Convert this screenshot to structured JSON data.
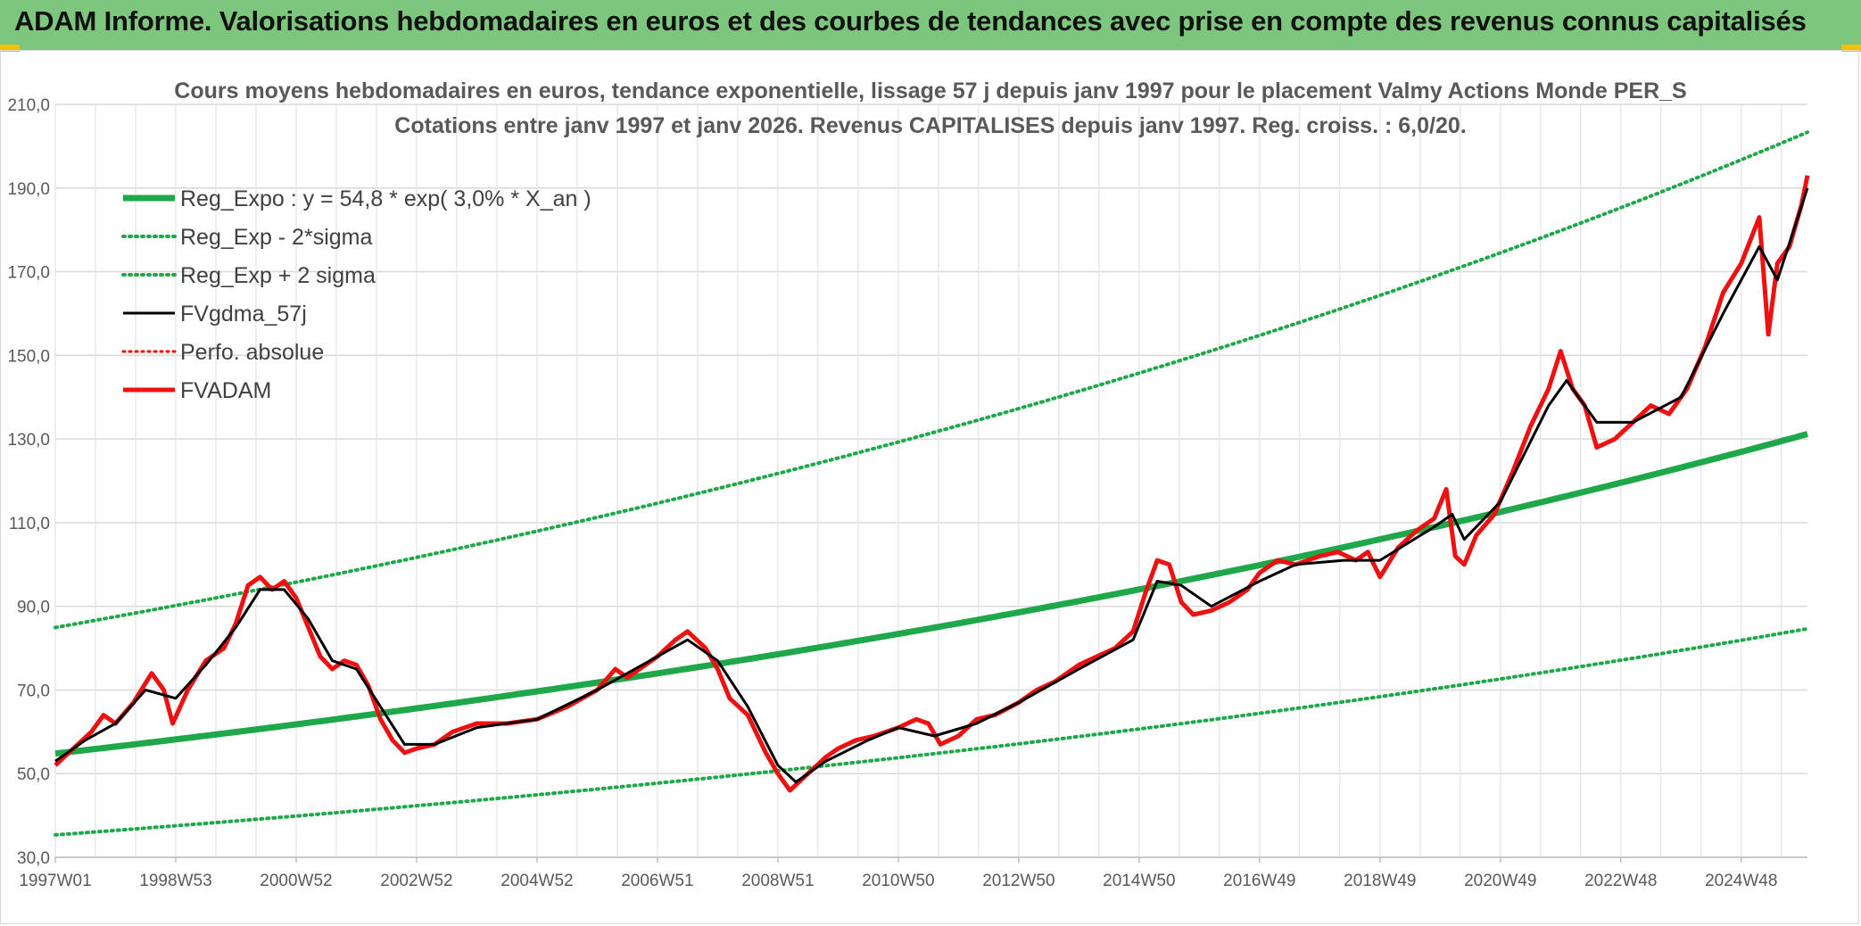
{
  "banner": {
    "text": "ADAM Informe. Valorisations hebdomadaires en euros et des courbes de tendances avec prise en compte des revenus connus capitalisés",
    "background": "#7dc67d"
  },
  "chart_data": {
    "type": "line",
    "title": [
      "Cours moyens hebdomadaires en euros, tendance exponentielle, lissage 57 j depuis janv 1997 pour le placement Valmy Actions Monde PER_S",
      "Cotations entre janv 1997 et janv 2026. Revenus CAPITALISES depuis janv 1997. Reg. croiss. : 6,0/20."
    ],
    "ylim": [
      30,
      210
    ],
    "yticks": [
      "30,0",
      "50,0",
      "70,0",
      "90,0",
      "110,0",
      "130,0",
      "150,0",
      "170,0",
      "190,0",
      "210,0"
    ],
    "xlim": [
      1997.0,
      2026.1
    ],
    "xticks": [
      {
        "label": "1997W01",
        "x": 1997.0
      },
      {
        "label": "1998W53",
        "x": 1999.0
      },
      {
        "label": "2000W52",
        "x": 2001.0
      },
      {
        "label": "2002W52",
        "x": 2003.0
      },
      {
        "label": "2004W52",
        "x": 2005.0
      },
      {
        "label": "2006W51",
        "x": 2007.0
      },
      {
        "label": "2008W51",
        "x": 2009.0
      },
      {
        "label": "2010W50",
        "x": 2011.0
      },
      {
        "label": "2012W50",
        "x": 2013.0
      },
      {
        "label": "2014W50",
        "x": 2015.0
      },
      {
        "label": "2016W49",
        "x": 2017.0
      },
      {
        "label": "2018W49",
        "x": 2019.0
      },
      {
        "label": "2020W49",
        "x": 2021.0
      },
      {
        "label": "2022W48",
        "x": 2023.0
      },
      {
        "label": "2024W48",
        "x": 2025.0
      }
    ],
    "regression": {
      "a": 54.8,
      "rate": 0.03,
      "sigma_factor": 1.55
    },
    "series": [
      {
        "name": "Reg_Expo : y = 54,8 * exp( 3,0% *  X_an )",
        "color": "#1fa84a",
        "style": "solid",
        "width": 7
      },
      {
        "name": "Reg_Exp - 2*sigma",
        "color": "#1fa84a",
        "style": "dotted",
        "width": 4
      },
      {
        "name": "Reg_Exp + 2 sigma",
        "color": "#1fa84a",
        "style": "dotted",
        "width": 4
      },
      {
        "name": "FVgdma_57j",
        "color": "#000000",
        "style": "solid",
        "width": 3
      },
      {
        "name": "Perfo. absolue",
        "color": "#ff0000",
        "style": "dotted",
        "width": 3
      },
      {
        "name": "FVADAM",
        "color": "#ee1111",
        "style": "solid",
        "width": 5
      }
    ],
    "fvadam_points": [
      [
        1997.0,
        52
      ],
      [
        1997.3,
        56
      ],
      [
        1997.6,
        60
      ],
      [
        1997.8,
        64
      ],
      [
        1998.0,
        62
      ],
      [
        1998.3,
        67
      ],
      [
        1998.6,
        74
      ],
      [
        1998.8,
        70
      ],
      [
        1998.95,
        62
      ],
      [
        1999.2,
        70
      ],
      [
        1999.5,
        77
      ],
      [
        1999.8,
        80
      ],
      [
        2000.0,
        86
      ],
      [
        2000.2,
        95
      ],
      [
        2000.4,
        97
      ],
      [
        2000.6,
        94
      ],
      [
        2000.8,
        96
      ],
      [
        2001.0,
        92
      ],
      [
        2001.2,
        85
      ],
      [
        2001.4,
        78
      ],
      [
        2001.6,
        75
      ],
      [
        2001.8,
        77
      ],
      [
        2002.0,
        76
      ],
      [
        2002.2,
        71
      ],
      [
        2002.4,
        63
      ],
      [
        2002.6,
        58
      ],
      [
        2002.8,
        55
      ],
      [
        2003.0,
        56
      ],
      [
        2003.3,
        57
      ],
      [
        2003.6,
        60
      ],
      [
        2004.0,
        62
      ],
      [
        2004.5,
        62
      ],
      [
        2005.0,
        63
      ],
      [
        2005.5,
        66
      ],
      [
        2006.0,
        70
      ],
      [
        2006.3,
        75
      ],
      [
        2006.5,
        73
      ],
      [
        2007.0,
        78
      ],
      [
        2007.3,
        82
      ],
      [
        2007.5,
        84
      ],
      [
        2007.8,
        80
      ],
      [
        2008.0,
        75
      ],
      [
        2008.2,
        68
      ],
      [
        2008.5,
        64
      ],
      [
        2008.8,
        55
      ],
      [
        2009.0,
        50
      ],
      [
        2009.2,
        46
      ],
      [
        2009.5,
        50
      ],
      [
        2009.8,
        54
      ],
      [
        2010.0,
        56
      ],
      [
        2010.3,
        58
      ],
      [
        2010.6,
        59
      ],
      [
        2011.0,
        61
      ],
      [
        2011.3,
        63
      ],
      [
        2011.5,
        62
      ],
      [
        2011.7,
        57
      ],
      [
        2012.0,
        59
      ],
      [
        2012.3,
        63
      ],
      [
        2012.6,
        64
      ],
      [
        2013.0,
        67
      ],
      [
        2013.3,
        70
      ],
      [
        2013.6,
        72
      ],
      [
        2014.0,
        76
      ],
      [
        2014.3,
        78
      ],
      [
        2014.6,
        80
      ],
      [
        2014.9,
        84
      ],
      [
        2015.1,
        93
      ],
      [
        2015.3,
        101
      ],
      [
        2015.5,
        100
      ],
      [
        2015.7,
        91
      ],
      [
        2015.9,
        88
      ],
      [
        2016.2,
        89
      ],
      [
        2016.5,
        91
      ],
      [
        2016.8,
        94
      ],
      [
        2017.0,
        98
      ],
      [
        2017.3,
        101
      ],
      [
        2017.6,
        100
      ],
      [
        2018.0,
        102
      ],
      [
        2018.3,
        103
      ],
      [
        2018.6,
        101
      ],
      [
        2018.8,
        103
      ],
      [
        2019.0,
        97
      ],
      [
        2019.3,
        104
      ],
      [
        2019.6,
        108
      ],
      [
        2019.9,
        111
      ],
      [
        2020.1,
        118
      ],
      [
        2020.25,
        102
      ],
      [
        2020.4,
        100
      ],
      [
        2020.6,
        107
      ],
      [
        2020.9,
        112
      ],
      [
        2021.2,
        122
      ],
      [
        2021.5,
        133
      ],
      [
        2021.8,
        142
      ],
      [
        2022.0,
        151
      ],
      [
        2022.2,
        142
      ],
      [
        2022.4,
        138
      ],
      [
        2022.6,
        128
      ],
      [
        2022.9,
        130
      ],
      [
        2023.2,
        134
      ],
      [
        2023.5,
        138
      ],
      [
        2023.8,
        136
      ],
      [
        2024.1,
        142
      ],
      [
        2024.4,
        152
      ],
      [
        2024.7,
        165
      ],
      [
        2025.0,
        172
      ],
      [
        2025.3,
        183
      ],
      [
        2025.45,
        155
      ],
      [
        2025.6,
        172
      ],
      [
        2025.8,
        176
      ],
      [
        2026.0,
        186
      ],
      [
        2026.1,
        193
      ]
    ],
    "fvgdma_points": [
      [
        1997.0,
        53
      ],
      [
        1997.5,
        58
      ],
      [
        1998.0,
        62
      ],
      [
        1998.5,
        70
      ],
      [
        1999.0,
        68
      ],
      [
        1999.5,
        76
      ],
      [
        2000.0,
        85
      ],
      [
        2000.4,
        94
      ],
      [
        2000.8,
        94
      ],
      [
        2001.2,
        87
      ],
      [
        2001.6,
        77
      ],
      [
        2002.0,
        75
      ],
      [
        2002.4,
        66
      ],
      [
        2002.8,
        57
      ],
      [
        2003.3,
        57
      ],
      [
        2004.0,
        61
      ],
      [
        2005.0,
        63
      ],
      [
        2006.0,
        70
      ],
      [
        2006.5,
        74
      ],
      [
        2007.0,
        78
      ],
      [
        2007.5,
        82
      ],
      [
        2008.0,
        77
      ],
      [
        2008.5,
        66
      ],
      [
        2009.0,
        52
      ],
      [
        2009.3,
        48
      ],
      [
        2009.8,
        53
      ],
      [
        2010.5,
        58
      ],
      [
        2011.0,
        61
      ],
      [
        2011.6,
        59
      ],
      [
        2012.3,
        62
      ],
      [
        2013.0,
        67
      ],
      [
        2014.0,
        75
      ],
      [
        2014.9,
        82
      ],
      [
        2015.3,
        96
      ],
      [
        2015.7,
        95
      ],
      [
        2016.2,
        90
      ],
      [
        2017.0,
        96
      ],
      [
        2017.6,
        100
      ],
      [
        2018.4,
        101
      ],
      [
        2019.0,
        101
      ],
      [
        2019.9,
        109
      ],
      [
        2020.2,
        112
      ],
      [
        2020.4,
        106
      ],
      [
        2021.0,
        115
      ],
      [
        2021.8,
        138
      ],
      [
        2022.1,
        144
      ],
      [
        2022.6,
        134
      ],
      [
        2023.2,
        134
      ],
      [
        2024.0,
        140
      ],
      [
        2024.7,
        160
      ],
      [
        2025.3,
        176
      ],
      [
        2025.6,
        168
      ],
      [
        2026.1,
        190
      ]
    ]
  }
}
